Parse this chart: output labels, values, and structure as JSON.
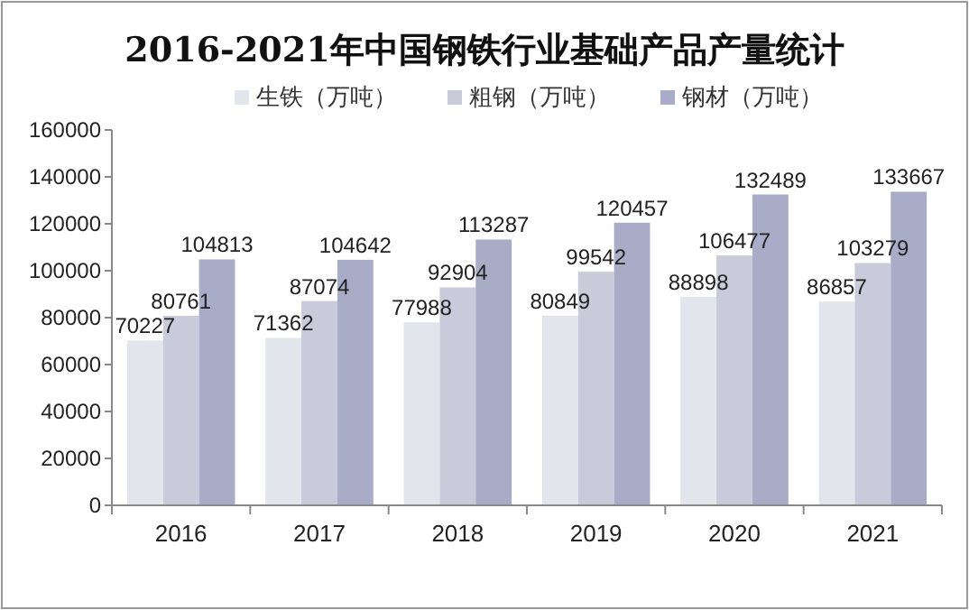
{
  "chart_data": {
    "type": "bar",
    "title": "2016-2021年中国钢铁行业基础产品产量统计",
    "categories": [
      "2016",
      "2017",
      "2018",
      "2019",
      "2020",
      "2021"
    ],
    "series": [
      {
        "name": "生铁（万吨）",
        "color": "#e3e5ec",
        "values": [
          70227,
          71362,
          77988,
          80849,
          88898,
          86857
        ]
      },
      {
        "name": "粗钢（万吨）",
        "color": "#c9cbda",
        "values": [
          80761,
          87074,
          92904,
          99542,
          106477,
          103279
        ]
      },
      {
        "name": "钢材（万吨）",
        "color": "#a8acc6",
        "values": [
          104813,
          104642,
          113287,
          120457,
          132489,
          133667
        ]
      }
    ],
    "ylim": [
      0,
      160000
    ],
    "yticks": [
      0,
      20000,
      40000,
      60000,
      80000,
      100000,
      120000,
      140000,
      160000
    ],
    "legend": "top",
    "data_labels": true,
    "grid": false
  }
}
